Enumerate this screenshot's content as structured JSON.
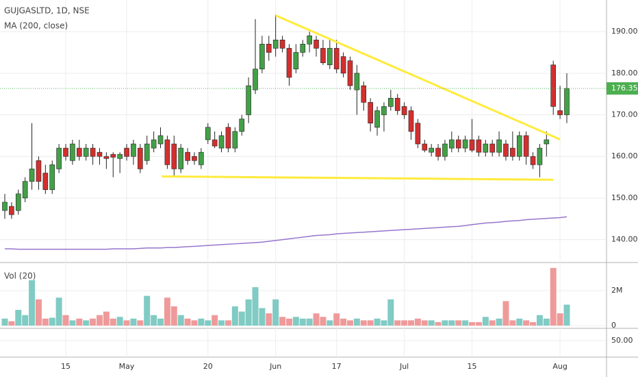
{
  "chart_data": {
    "type": "candlestick",
    "title": "GUJGASLTD, 1D, NSE",
    "categories": [
      null,
      null,
      null,
      null,
      null,
      null,
      null,
      null,
      null,
      "15",
      null,
      null,
      null,
      null,
      null,
      null,
      null,
      null,
      "May",
      null,
      null,
      null,
      null,
      null,
      null,
      null,
      null,
      null,
      null,
      null,
      "20",
      null,
      null,
      null,
      null,
      null,
      null,
      null,
      null,
      null,
      "Jun",
      null,
      null,
      null,
      null,
      null,
      null,
      null,
      null,
      "17",
      null,
      null,
      null,
      null,
      null,
      null,
      null,
      null,
      null,
      "Jul",
      null,
      null,
      null,
      null,
      null,
      null,
      null,
      null,
      null,
      "15",
      null,
      null,
      null,
      null,
      null,
      null,
      null,
      null,
      null,
      null,
      null,
      null,
      "Aug",
      null
    ],
    "open": [
      147,
      148,
      147,
      150,
      154,
      159,
      156,
      152,
      157,
      162,
      159,
      162,
      160,
      162,
      161,
      160,
      160.5,
      159.5,
      162,
      160,
      162,
      159,
      162,
      163,
      164,
      163,
      157,
      161,
      160,
      158,
      164,
      164,
      162,
      167,
      162,
      166,
      170,
      176,
      181,
      187,
      186,
      188,
      186,
      181,
      185,
      187,
      188,
      186,
      182,
      186,
      184,
      183,
      176,
      177,
      173,
      167,
      170,
      172,
      174,
      172,
      171,
      168,
      163,
      161,
      162,
      160,
      162,
      164,
      162,
      164,
      164,
      161,
      163,
      161,
      163,
      162,
      160,
      165,
      160,
      158,
      163,
      182,
      171,
      170
    ],
    "high": [
      151,
      149,
      152,
      155,
      168,
      160,
      158,
      159,
      163,
      163,
      164,
      164,
      163,
      163,
      162,
      161,
      161,
      161,
      163,
      164,
      163,
      165,
      166,
      167,
      165,
      165,
      163,
      162,
      161,
      162,
      168,
      166,
      166,
      168,
      167,
      170,
      179,
      193,
      189,
      189,
      194,
      189,
      187,
      187,
      188,
      190,
      189,
      188,
      188,
      188,
      185,
      184,
      182,
      178,
      174,
      172,
      173,
      176,
      175,
      173,
      172,
      169,
      164,
      163,
      163,
      164,
      166,
      165,
      165,
      169,
      165,
      164,
      164,
      166,
      164,
      166,
      166,
      166,
      161,
      163,
      166,
      183,
      177,
      180
    ],
    "low": [
      145,
      145,
      146,
      149,
      152,
      152,
      151,
      151,
      156,
      159,
      158,
      159,
      159,
      158,
      158,
      157,
      155,
      156,
      159,
      158,
      156,
      158,
      161,
      162,
      157,
      155,
      156,
      158,
      158,
      157,
      163,
      162,
      161,
      161,
      161,
      165,
      168,
      175,
      180,
      183,
      184,
      185,
      177,
      180,
      184,
      185,
      184,
      182,
      181,
      180,
      179,
      176,
      170,
      171,
      166,
      165,
      166,
      171,
      170,
      169,
      164,
      162,
      161,
      160,
      159,
      159,
      161,
      161,
      161,
      161,
      160,
      160,
      160,
      160,
      159,
      159,
      159,
      158,
      157,
      155,
      160,
      170,
      169,
      168
    ],
    "close": [
      149,
      146,
      151,
      154,
      157,
      154,
      152,
      158,
      162,
      160,
      163,
      160,
      162,
      160,
      160,
      159.5,
      159.8,
      160.5,
      160,
      163,
      157,
      163,
      164,
      165,
      158,
      157,
      162,
      159,
      159,
      161,
      167,
      162.5,
      165,
      162,
      166,
      169,
      177,
      181,
      187,
      185,
      188,
      186,
      179,
      185,
      187,
      189,
      186,
      182.5,
      186,
      181,
      180,
      177,
      180,
      173,
      168,
      171,
      172,
      174,
      171,
      170,
      166,
      163,
      161.5,
      162,
      160,
      163,
      164,
      162,
      164,
      161.5,
      161,
      163,
      161,
      164,
      160,
      160,
      165,
      160,
      158,
      162,
      164,
      172,
      170,
      176.35
    ],
    "up_color": "#43a047",
    "down_color": "#d32f2f",
    "ylim": [
      134.5,
      197.6
    ],
    "yticks": [
      {
        "value": 140,
        "label": "140.00"
      },
      {
        "value": 150,
        "label": "150.00"
      },
      {
        "value": 160,
        "label": "160.00"
      },
      {
        "value": 170,
        "label": "170.00"
      },
      {
        "value": 180,
        "label": "180.00"
      },
      {
        "value": 190,
        "label": "190.00"
      }
    ],
    "grid": true,
    "last_price_color": "#4caf50",
    "ma": {
      "name": "MA (200, close)",
      "color": "#9575cd",
      "values": [
        137.8,
        137.8,
        137.7,
        137.7,
        137.7,
        137.7,
        137.7,
        137.7,
        137.7,
        137.7,
        137.7,
        137.7,
        137.7,
        137.7,
        137.7,
        137.7,
        137.8,
        137.8,
        137.8,
        137.8,
        137.9,
        138,
        138,
        138,
        138.1,
        138.1,
        138.2,
        138.3,
        138.4,
        138.5,
        138.6,
        138.7,
        138.8,
        138.9,
        139,
        139.1,
        139.2,
        139.3,
        139.4,
        139.6,
        139.8,
        140,
        140.2,
        140.4,
        140.6,
        140.8,
        141,
        141.1,
        141.2,
        141.4,
        141.5,
        141.6,
        141.7,
        141.8,
        141.9,
        142,
        142.1,
        142.2,
        142.3,
        142.4,
        142.5,
        142.6,
        142.7,
        142.8,
        142.9,
        143,
        143.1,
        143.2,
        143.4,
        143.6,
        143.8,
        144,
        144.1,
        144.2,
        144.4,
        144.5,
        144.6,
        144.8,
        144.9,
        145,
        145.1,
        145.2,
        145.3,
        145.5
      ]
    },
    "trendlines": [
      {
        "color": "#ffeb3b",
        "points": [
          [
            40,
            193.9
          ],
          [
            82,
            164.1
          ]
        ]
      },
      {
        "color": "#ffeb3b",
        "points": [
          [
            23.2,
            155.2
          ],
          [
            81,
            154.4
          ]
        ]
      }
    ],
    "volume": {
      "name": "Vol (20)",
      "up_color": "#80cbc4",
      "down_color": "#ef9a9a",
      "ylim": [
        0,
        3530000
      ],
      "yticks": [
        0,
        {
          "value": 2000000,
          "label": "2M"
        }
      ],
      "values": [
        400000,
        250000,
        900000,
        600000,
        2600000,
        1500000,
        400000,
        450000,
        1600000,
        600000,
        300000,
        400000,
        300000,
        400000,
        600000,
        800000,
        400000,
        500000,
        300000,
        400000,
        300000,
        1700000,
        600000,
        400000,
        1600000,
        1100000,
        600000,
        400000,
        300000,
        400000,
        300000,
        600000,
        300000,
        300000,
        1100000,
        800000,
        1500000,
        2200000,
        1000000,
        700000,
        1500000,
        500000,
        400000,
        500000,
        400000,
        400000,
        700000,
        500000,
        300000,
        700000,
        400000,
        300000,
        400000,
        300000,
        300000,
        400000,
        300000,
        1500000,
        300000,
        300000,
        300000,
        400000,
        300000,
        300000,
        200000,
        300000,
        300000,
        300000,
        300000,
        200000,
        200000,
        500000,
        300000,
        400000,
        1400000,
        300000,
        400000,
        300000,
        200000,
        600000,
        400000,
        3300000,
        700000,
        1200000
      ]
    },
    "indicator": {
      "ylim": [
        25,
        68.5
      ],
      "yticks": [
        {
          "value": 50,
          "label": "50.00"
        }
      ]
    }
  }
}
